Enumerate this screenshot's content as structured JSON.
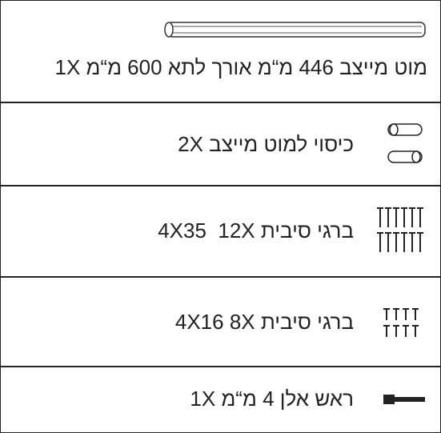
{
  "items": [
    {
      "label": "מוט מייצב 446 מ“מ אורך לתא 600 מ“מ 1X"
    },
    {
      "label": "כיסוי למוט מייצב 2X"
    },
    {
      "label": "ברגי סיבית 4X35  12X"
    },
    {
      "label": "ברגי סיבית 4X16 8X"
    },
    {
      "label": "ראש אלן 4 מ“מ 1X"
    }
  ]
}
